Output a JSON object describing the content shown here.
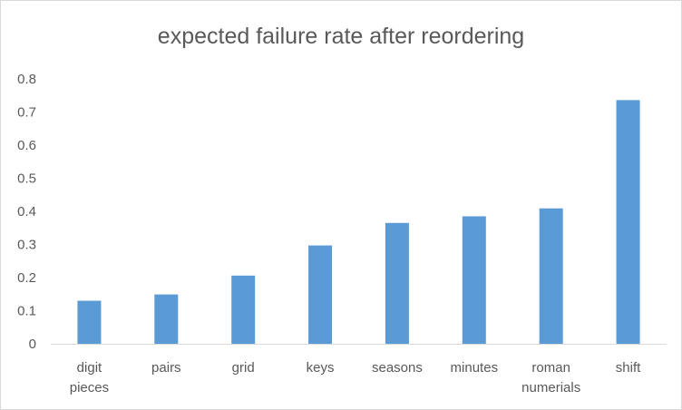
{
  "chart_data": {
    "type": "bar",
    "title": "expected failure rate after reordering",
    "xlabel": "",
    "ylabel": "",
    "categories": [
      [
        "digit",
        "pieces"
      ],
      [
        "pairs"
      ],
      [
        "grid"
      ],
      [
        "keys"
      ],
      [
        "seasons"
      ],
      [
        "minutes"
      ],
      [
        "roman",
        "numerials"
      ],
      [
        "shift"
      ]
    ],
    "values": [
      0.13,
      0.149,
      0.206,
      0.297,
      0.365,
      0.385,
      0.409,
      0.736
    ],
    "ylim": [
      0,
      0.8
    ],
    "yticks": [
      "0",
      "0.1",
      "0.2",
      "0.3",
      "0.4",
      "0.5",
      "0.6",
      "0.7",
      "0.8"
    ],
    "grid": false,
    "legend": "none",
    "colors": {
      "bar": "#5b9bd5",
      "text": "#595959",
      "axis": "#d9d9d9"
    }
  }
}
